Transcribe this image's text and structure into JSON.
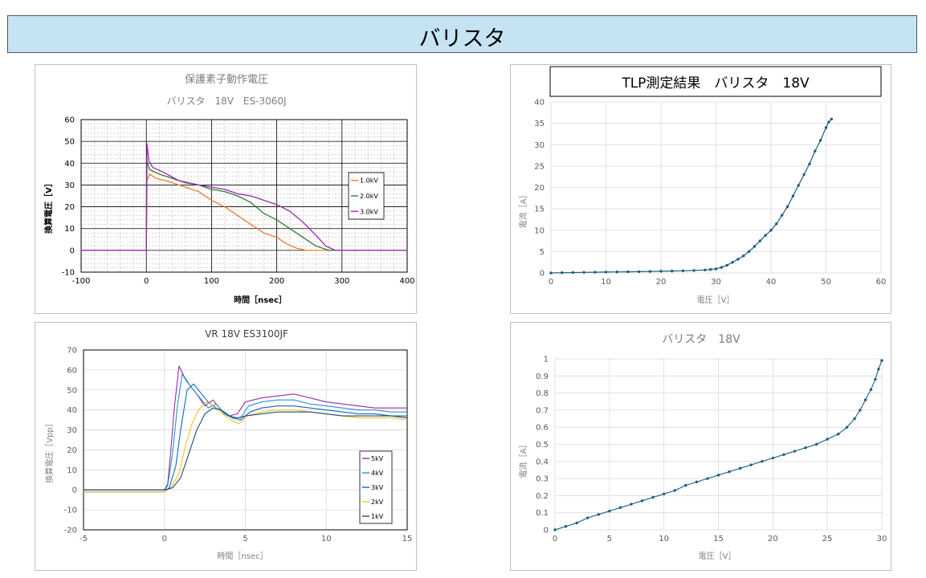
{
  "header": {
    "title": "バリスタ"
  },
  "colors": {
    "orange": "#ed7d31",
    "green": "#2e7d32",
    "purple": "#9c27b0",
    "teal": "#1b5e80",
    "banner": "#c5e3f3"
  },
  "chart_data": [
    {
      "id": "c1",
      "type": "line",
      "title": "保護素子動作電圧",
      "subtitle": "バリスタ　18V　ES-3060J",
      "xlabel": "時間［nsec］",
      "ylabel": "換算電圧［V］",
      "xlim": [
        -100,
        400
      ],
      "ylim": [
        -10,
        60
      ],
      "xticks": [
        -100,
        0,
        100,
        200,
        300,
        400
      ],
      "yticks": [
        -10,
        0,
        10,
        20,
        30,
        40,
        50,
        60
      ],
      "grid": true,
      "legend": "right",
      "series": [
        {
          "name": "1.0kV",
          "color": "#ed7d31",
          "points": [
            [
              -100,
              0
            ],
            [
              -2,
              0
            ],
            [
              0,
              0
            ],
            [
              1,
              32
            ],
            [
              5,
              35
            ],
            [
              15,
              33
            ],
            [
              30,
              32
            ],
            [
              60,
              29
            ],
            [
              80,
              27
            ],
            [
              100,
              23
            ],
            [
              120,
              20
            ],
            [
              140,
              16
            ],
            [
              160,
              12
            ],
            [
              180,
              8
            ],
            [
              200,
              6
            ],
            [
              215,
              3
            ],
            [
              230,
              1
            ],
            [
              245,
              0
            ],
            [
              400,
              0
            ]
          ]
        },
        {
          "name": "2.0kV",
          "color": "#2e7d32",
          "points": [
            [
              -100,
              0
            ],
            [
              -2,
              0
            ],
            [
              0,
              0
            ],
            [
              1,
              41
            ],
            [
              5,
              37
            ],
            [
              20,
              35
            ],
            [
              40,
              33
            ],
            [
              60,
              31
            ],
            [
              80,
              30
            ],
            [
              100,
              28
            ],
            [
              120,
              27
            ],
            [
              140,
              25
            ],
            [
              160,
              22
            ],
            [
              180,
              17
            ],
            [
              200,
              14
            ],
            [
              220,
              10
            ],
            [
              240,
              6
            ],
            [
              260,
              2
            ],
            [
              280,
              0
            ],
            [
              400,
              0
            ]
          ]
        },
        {
          "name": "3.0kV",
          "color": "#9c27b0",
          "points": [
            [
              -100,
              0
            ],
            [
              -2,
              0
            ],
            [
              0,
              0
            ],
            [
              1,
              49
            ],
            [
              4,
              41
            ],
            [
              10,
              38
            ],
            [
              25,
              36
            ],
            [
              50,
              32
            ],
            [
              80,
              30
            ],
            [
              100,
              29
            ],
            [
              120,
              28
            ],
            [
              140,
              26
            ],
            [
              160,
              25
            ],
            [
              180,
              23
            ],
            [
              200,
              21
            ],
            [
              220,
              18
            ],
            [
              240,
              13
            ],
            [
              260,
              7
            ],
            [
              275,
              2
            ],
            [
              290,
              0
            ],
            [
              400,
              0
            ]
          ]
        }
      ]
    },
    {
      "id": "c2",
      "type": "scatter",
      "title": "TLP測定結果　バリスタ　18V",
      "xlabel": "電圧［V］",
      "ylabel": "電流［A］",
      "xlim": [
        0,
        60
      ],
      "ylim": [
        0,
        40
      ],
      "xticks": [
        0,
        10,
        20,
        30,
        40,
        50,
        60
      ],
      "yticks": [
        0,
        5,
        10,
        15,
        20,
        25,
        30,
        35,
        40
      ],
      "grid": true,
      "series": [
        {
          "name": "",
          "color": "#1b5e80",
          "points": [
            [
              0,
              0
            ],
            [
              2,
              0.05
            ],
            [
              4,
              0.1
            ],
            [
              6,
              0.13
            ],
            [
              8,
              0.17
            ],
            [
              10,
              0.2
            ],
            [
              12,
              0.24
            ],
            [
              14,
              0.27
            ],
            [
              16,
              0.3
            ],
            [
              18,
              0.35
            ],
            [
              20,
              0.4
            ],
            [
              22,
              0.45
            ],
            [
              24,
              0.5
            ],
            [
              26,
              0.58
            ],
            [
              28,
              0.7
            ],
            [
              29,
              0.8
            ],
            [
              30,
              0.95
            ],
            [
              31,
              1.3
            ],
            [
              32,
              1.8
            ],
            [
              33,
              2.5
            ],
            [
              34,
              3.2
            ],
            [
              35,
              4
            ],
            [
              36,
              5
            ],
            [
              37,
              6.2
            ],
            [
              38,
              7.5
            ],
            [
              39,
              8.8
            ],
            [
              40,
              10
            ],
            [
              41,
              11.5
            ],
            [
              42,
              13.5
            ],
            [
              43,
              15.5
            ],
            [
              44,
              18
            ],
            [
              45,
              20.5
            ],
            [
              46,
              23
            ],
            [
              47,
              25.5
            ],
            [
              48,
              28.5
            ],
            [
              49,
              31
            ],
            [
              50,
              34
            ],
            [
              50.5,
              35.3
            ],
            [
              51,
              36
            ]
          ]
        }
      ]
    },
    {
      "id": "c3",
      "type": "line",
      "title": "VR 18V ES3100JF",
      "xlabel": "時間［nsec］",
      "ylabel": "換算電圧［Vpp］",
      "xlim": [
        -5,
        15
      ],
      "ylim": [
        -20,
        70
      ],
      "xticks": [
        -5,
        0,
        5,
        10,
        15
      ],
      "yticks": [
        -20,
        -10,
        0,
        10,
        20,
        30,
        40,
        50,
        60,
        70
      ],
      "grid": true,
      "legend": "bottom-right",
      "series": [
        {
          "name": "5kV",
          "color": "#9c27b0",
          "points": [
            [
              -5,
              0
            ],
            [
              0,
              0
            ],
            [
              0.2,
              3
            ],
            [
              0.4,
              20
            ],
            [
              0.6,
              40
            ],
            [
              0.9,
              62
            ],
            [
              1.2,
              57
            ],
            [
              1.6,
              52
            ],
            [
              2,
              48
            ],
            [
              2.5,
              42
            ],
            [
              3,
              45
            ],
            [
              3.5,
              40
            ],
            [
              4,
              37
            ],
            [
              4.5,
              38
            ],
            [
              5,
              44
            ],
            [
              6,
              46
            ],
            [
              7,
              47
            ],
            [
              8,
              48
            ],
            [
              9,
              46
            ],
            [
              10,
              44
            ],
            [
              11,
              43
            ],
            [
              12,
              42
            ],
            [
              13,
              41
            ],
            [
              14,
              41
            ],
            [
              15,
              41
            ]
          ]
        },
        {
          "name": "4kV",
          "color": "#2196c8",
          "points": [
            [
              -5,
              0
            ],
            [
              0,
              0
            ],
            [
              0.2,
              2
            ],
            [
              0.5,
              18
            ],
            [
              0.8,
              42
            ],
            [
              1.1,
              58
            ],
            [
              1.4,
              54
            ],
            [
              1.8,
              50
            ],
            [
              2.2,
              46
            ],
            [
              2.7,
              41
            ],
            [
              3.2,
              43
            ],
            [
              3.7,
              38
            ],
            [
              4.2,
              36
            ],
            [
              4.7,
              36
            ],
            [
              5.2,
              42
            ],
            [
              6,
              44
            ],
            [
              7,
              45
            ],
            [
              8,
              45
            ],
            [
              9,
              43
            ],
            [
              10,
              42
            ],
            [
              11,
              41
            ],
            [
              12,
              40
            ],
            [
              13,
              40
            ],
            [
              14,
              39
            ],
            [
              15,
              39
            ]
          ]
        },
        {
          "name": "3kV",
          "color": "#1565c0",
          "points": [
            [
              -5,
              -1
            ],
            [
              0,
              -1
            ],
            [
              0.3,
              1
            ],
            [
              0.7,
              12
            ],
            [
              1,
              30
            ],
            [
              1.4,
              50
            ],
            [
              1.8,
              53
            ],
            [
              2.2,
              49
            ],
            [
              2.7,
              44
            ],
            [
              3.2,
              41
            ],
            [
              3.7,
              39
            ],
            [
              4.2,
              36
            ],
            [
              4.7,
              35
            ],
            [
              5.3,
              39
            ],
            [
              6,
              41
            ],
            [
              7,
              42
            ],
            [
              8,
              42
            ],
            [
              9,
              41
            ],
            [
              10,
              40
            ],
            [
              11,
              39
            ],
            [
              12,
              38
            ],
            [
              13,
              38
            ],
            [
              14,
              37
            ],
            [
              15,
              37
            ]
          ]
        },
        {
          "name": "2kV",
          "color": "#f9c220",
          "points": [
            [
              -5,
              -1
            ],
            [
              0,
              -1
            ],
            [
              0.4,
              1
            ],
            [
              0.9,
              8
            ],
            [
              1.3,
              22
            ],
            [
              1.7,
              33
            ],
            [
              2.1,
              40
            ],
            [
              2.6,
              44
            ],
            [
              3.1,
              42
            ],
            [
              3.6,
              38
            ],
            [
              4.1,
              35
            ],
            [
              4.6,
              33
            ],
            [
              5.1,
              37
            ],
            [
              6,
              39
            ],
            [
              7,
              40
            ],
            [
              8,
              40
            ],
            [
              9,
              39
            ],
            [
              10,
              38
            ],
            [
              11,
              37
            ],
            [
              12,
              36
            ],
            [
              13,
              36
            ],
            [
              14,
              36
            ],
            [
              15,
              35
            ]
          ]
        },
        {
          "name": "1kV",
          "color": "#1b4f72",
          "points": [
            [
              -5,
              0
            ],
            [
              0,
              0
            ],
            [
              0.5,
              1
            ],
            [
              1,
              6
            ],
            [
              1.5,
              18
            ],
            [
              2,
              30
            ],
            [
              2.5,
              38
            ],
            [
              3,
              41
            ],
            [
              3.5,
              40
            ],
            [
              4,
              37
            ],
            [
              4.5,
              36
            ],
            [
              5,
              37
            ],
            [
              6,
              38
            ],
            [
              7,
              39
            ],
            [
              8,
              39
            ],
            [
              9,
              39
            ],
            [
              10,
              38
            ],
            [
              11,
              37
            ],
            [
              12,
              37
            ],
            [
              13,
              37
            ],
            [
              14,
              37
            ],
            [
              15,
              36
            ]
          ]
        }
      ]
    },
    {
      "id": "c4",
      "type": "line",
      "title": "バリスタ　18V",
      "xlabel": "電圧［V］",
      "ylabel": "電流［A］",
      "xlim": [
        0,
        30
      ],
      "ylim": [
        0,
        1
      ],
      "xticks": [
        0,
        5,
        10,
        15,
        20,
        25,
        30
      ],
      "yticks": [
        0,
        0.1,
        0.2,
        0.3,
        0.4,
        0.5,
        0.6,
        0.7,
        0.8,
        0.9,
        1
      ],
      "grid": true,
      "series": [
        {
          "name": "",
          "color": "#1b5e80",
          "points": [
            [
              0,
              0
            ],
            [
              1,
              0.02
            ],
            [
              2,
              0.04
            ],
            [
              3,
              0.07
            ],
            [
              4,
              0.09
            ],
            [
              5,
              0.11
            ],
            [
              6,
              0.13
            ],
            [
              7,
              0.15
            ],
            [
              8,
              0.17
            ],
            [
              9,
              0.19
            ],
            [
              10,
              0.21
            ],
            [
              11,
              0.23
            ],
            [
              12,
              0.26
            ],
            [
              13,
              0.28
            ],
            [
              14,
              0.3
            ],
            [
              15,
              0.32
            ],
            [
              16,
              0.34
            ],
            [
              17,
              0.36
            ],
            [
              18,
              0.38
            ],
            [
              19,
              0.4
            ],
            [
              20,
              0.42
            ],
            [
              21,
              0.44
            ],
            [
              22,
              0.46
            ],
            [
              23,
              0.48
            ],
            [
              24,
              0.5
            ],
            [
              25,
              0.53
            ],
            [
              26,
              0.56
            ],
            [
              26.8,
              0.6
            ],
            [
              27.5,
              0.65
            ],
            [
              28,
              0.7
            ],
            [
              28.5,
              0.76
            ],
            [
              29,
              0.82
            ],
            [
              29.4,
              0.88
            ],
            [
              29.7,
              0.94
            ],
            [
              30,
              0.99
            ]
          ]
        }
      ]
    }
  ]
}
